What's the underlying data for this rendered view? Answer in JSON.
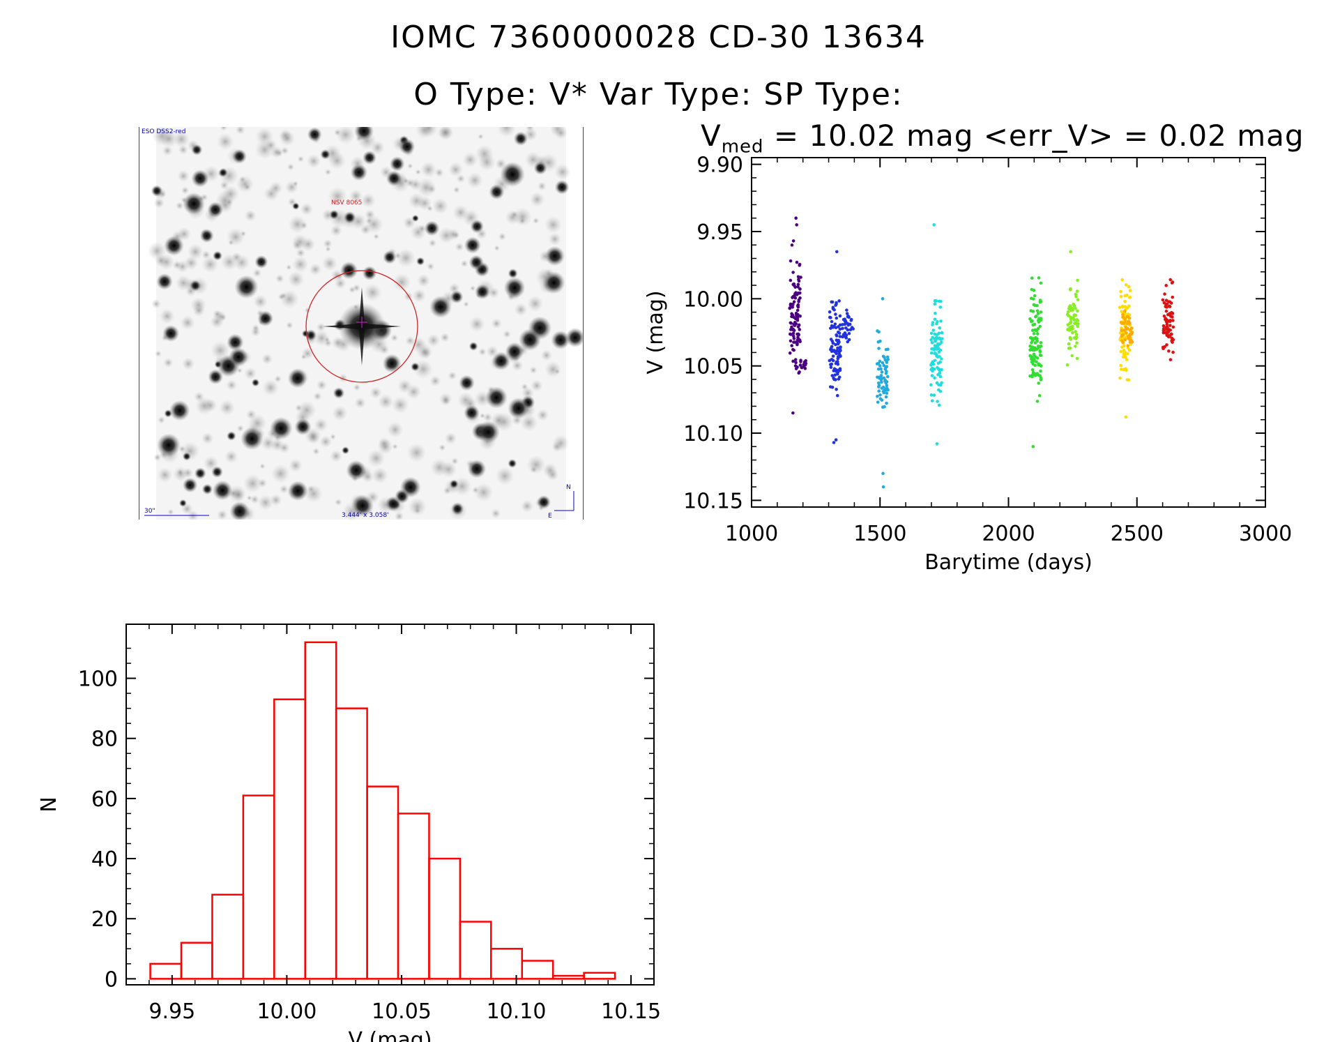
{
  "header": {
    "title_line1": "IOMC 7360000028   CD-30 13634",
    "title_line2": "O Type: V*  Var Type:   SP Type:"
  },
  "image_panel": {
    "survey_label": "ESO DSS2-red",
    "target_label": "NSV 8065",
    "scale_label": "30\"",
    "field_label": "3.444' x 3.058'",
    "compass_n": "N",
    "compass_e": "E",
    "colors": {
      "circle": "#cc2222",
      "label": "#cc2222",
      "compass": "#0000cc"
    }
  },
  "lightcurve_title": {
    "v_symbol": "V",
    "v_subscript": "med",
    "text": " = 10.02 mag <err_V> = 0.02 mag"
  },
  "chart_data": [
    {
      "type": "scatter",
      "xlabel": "Barytime (days)",
      "ylabel": "V (mag)",
      "xlim": [
        1000,
        3000
      ],
      "ylim": [
        10.155,
        9.895
      ],
      "y_inverted": true,
      "xticks": [
        1000,
        1500,
        2000,
        2500,
        3000
      ],
      "xtick_labels": [
        "1000",
        "1500",
        "2000",
        "2500",
        "3000"
      ],
      "yticks": [
        9.9,
        9.95,
        10.0,
        10.05,
        10.1,
        10.15
      ],
      "ytick_labels": [
        "9.90",
        "9.95",
        "10.00",
        "10.05",
        "10.10",
        "10.15"
      ],
      "grid": false,
      "groups": [
        {
          "x": 1170,
          "color": "#4b0082",
          "ymin": 9.955,
          "ymax": 10.065,
          "outliers": [
            9.945,
            9.94,
            10.085
          ]
        },
        {
          "x": 1190,
          "color": "#4b0082",
          "ymin": 10.04,
          "ymax": 10.06,
          "outliers": []
        },
        {
          "x": 1325,
          "color": "#2233dd",
          "ymin": 9.985,
          "ymax": 10.09,
          "outliers": [
            9.965,
            10.105,
            10.107
          ]
        },
        {
          "x": 1375,
          "color": "#2233dd",
          "ymin": 10.0,
          "ymax": 10.04,
          "outliers": []
        },
        {
          "x": 1510,
          "color": "#22aadd",
          "ymin": 10.02,
          "ymax": 10.095,
          "outliers": [
            10.0,
            10.13,
            10.14
          ]
        },
        {
          "x": 1720,
          "color": "#22dddd",
          "ymin": 9.985,
          "ymax": 10.09,
          "outliers": [
            9.945,
            10.108
          ]
        },
        {
          "x": 2105,
          "color": "#33dd33",
          "ymin": 9.975,
          "ymax": 10.09,
          "outliers": [
            10.11
          ]
        },
        {
          "x": 2250,
          "color": "#88ee22",
          "ymin": 9.975,
          "ymax": 10.055,
          "outliers": [
            9.965
          ]
        },
        {
          "x": 2455,
          "color": "#ffdd00",
          "ymin": 9.97,
          "ymax": 10.075,
          "outliers": [
            10.088
          ]
        },
        {
          "x": 2460,
          "color": "#ffaa00",
          "ymin": 10.0,
          "ymax": 10.05,
          "outliers": []
        },
        {
          "x": 2620,
          "color": "#dd1111",
          "ymin": 9.98,
          "ymax": 10.06,
          "outliers": []
        }
      ]
    },
    {
      "type": "bar",
      "xlabel": "V (mag)",
      "ylabel": "N",
      "xlim": [
        9.93,
        10.16
      ],
      "ylim": [
        -2,
        118
      ],
      "xticks": [
        9.95,
        10.0,
        10.05,
        10.1,
        10.15
      ],
      "xtick_labels": [
        "9.95",
        "10.00",
        "10.05",
        "10.10",
        "10.15"
      ],
      "yticks": [
        0,
        20,
        40,
        60,
        80,
        100
      ],
      "ytick_labels": [
        "0",
        "20",
        "40",
        "60",
        "80",
        "100"
      ],
      "bin_edges": [
        9.9405,
        9.954,
        9.9675,
        9.981,
        9.9945,
        10.008,
        10.0215,
        10.035,
        10.0485,
        10.062,
        10.0755,
        10.089,
        10.1025,
        10.116,
        10.1295,
        10.143
      ],
      "values": [
        5,
        12,
        28,
        61,
        93,
        112,
        90,
        64,
        55,
        40,
        19,
        10,
        6,
        1,
        2
      ],
      "bar_color": "#ff0000",
      "grid": false
    }
  ]
}
